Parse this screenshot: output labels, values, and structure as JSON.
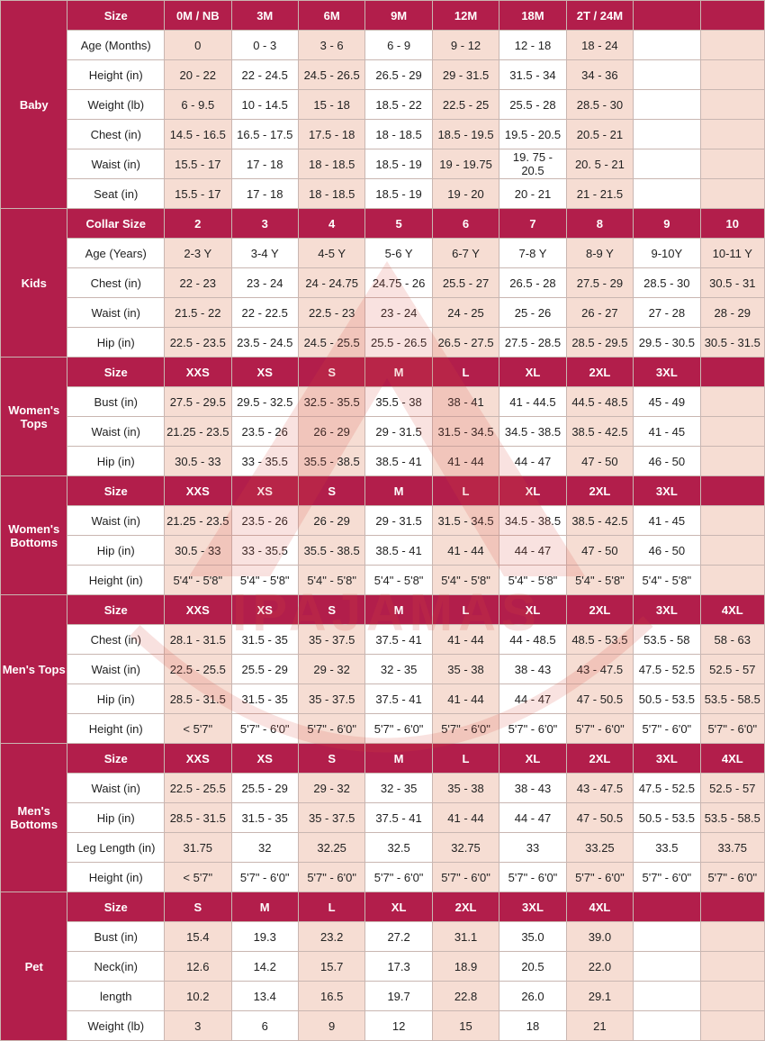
{
  "watermark": {
    "text": "IPAJAMAS",
    "color": "#d94a3d"
  },
  "colors": {
    "header_bg": "#b21e4b",
    "header_text": "#ffffff",
    "shade": "#f6ddd3",
    "white": "#ffffff",
    "border": "#c9b6b1"
  },
  "sections": [
    {
      "name": "Baby",
      "header": [
        "Size",
        "0M / NB",
        "3M",
        "6M",
        "9M",
        "12M",
        "18M",
        "2T / 24M",
        "",
        ""
      ],
      "rows": [
        [
          "Age (Months)",
          "0",
          "0 - 3",
          "3 - 6",
          "6 - 9",
          "9 - 12",
          "12 - 18",
          "18 - 24",
          "",
          ""
        ],
        [
          "Height (in)",
          "20 - 22",
          "22 - 24.5",
          "24.5 - 26.5",
          "26.5 - 29",
          "29 - 31.5",
          "31.5 - 34",
          "34 - 36",
          "",
          ""
        ],
        [
          "Weight (lb)",
          "6 - 9.5",
          "10 - 14.5",
          "15 - 18",
          "18.5 - 22",
          "22.5 - 25",
          "25.5 - 28",
          "28.5 - 30",
          "",
          ""
        ],
        [
          "Chest (in)",
          "14.5 - 16.5",
          "16.5 - 17.5",
          "17.5 - 18",
          "18 - 18.5",
          "18.5 - 19.5",
          "19.5 - 20.5",
          "20.5 - 21",
          "",
          ""
        ],
        [
          "Waist (in)",
          "15.5 - 17",
          "17 - 18",
          "18 - 18.5",
          "18.5 - 19",
          "19 - 19.75",
          "19. 75 - 20.5",
          "20. 5 - 21",
          "",
          ""
        ],
        [
          "Seat (in)",
          "15.5 - 17",
          "17 - 18",
          "18 - 18.5",
          "18.5 - 19",
          "19 - 20",
          "20 - 21",
          "21 - 21.5",
          "",
          ""
        ]
      ]
    },
    {
      "name": "Kids",
      "header": [
        "Collar Size",
        "2",
        "3",
        "4",
        "5",
        "6",
        "7",
        "8",
        "9",
        "10"
      ],
      "rows": [
        [
          "Age (Years)",
          "2-3 Y",
          "3-4 Y",
          "4-5 Y",
          "5-6 Y",
          "6-7 Y",
          "7-8 Y",
          "8-9 Y",
          "9-10Y",
          "10-11 Y"
        ],
        [
          "Chest (in)",
          "22 - 23",
          "23 - 24",
          "24 - 24.75",
          "24.75 - 26",
          "25.5 - 27",
          "26.5 - 28",
          "27.5 - 29",
          "28.5 - 30",
          "30.5 - 31"
        ],
        [
          "Waist (in)",
          "21.5 - 22",
          "22 - 22.5",
          "22.5 - 23",
          "23 - 24",
          "24 - 25",
          "25 - 26",
          "26 - 27",
          "27 - 28",
          "28 - 29"
        ],
        [
          "Hip (in)",
          "22.5 - 23.5",
          "23.5 - 24.5",
          "24.5 - 25.5",
          "25.5 - 26.5",
          "26.5 - 27.5",
          "27.5 - 28.5",
          "28.5 - 29.5",
          "29.5 - 30.5",
          "30.5 - 31.5"
        ]
      ]
    },
    {
      "name": "Women's Tops",
      "header": [
        "Size",
        "XXS",
        "XS",
        "S",
        "M",
        "L",
        "XL",
        "2XL",
        "3XL",
        ""
      ],
      "rows": [
        [
          "Bust (in)",
          "27.5 - 29.5",
          "29.5 - 32.5",
          "32.5 - 35.5",
          "35.5 - 38",
          "38 - 41",
          "41 - 44.5",
          "44.5 - 48.5",
          "45 - 49",
          ""
        ],
        [
          "Waist (in)",
          "21.25 - 23.5",
          "23.5 - 26",
          "26 - 29",
          "29 - 31.5",
          "31.5 - 34.5",
          "34.5 - 38.5",
          "38.5 - 42.5",
          "41 - 45",
          ""
        ],
        [
          "Hip (in)",
          "30.5 - 33",
          "33 - 35.5",
          "35.5 - 38.5",
          "38.5 - 41",
          "41 - 44",
          "44 - 47",
          "47 - 50",
          "46 - 50",
          ""
        ]
      ]
    },
    {
      "name": "Women's Bottoms",
      "header": [
        "Size",
        "XXS",
        "XS",
        "S",
        "M",
        "L",
        "XL",
        "2XL",
        "3XL",
        ""
      ],
      "rows": [
        [
          "Waist (in)",
          "21.25 - 23.5",
          "23.5 - 26",
          "26 - 29",
          "29 - 31.5",
          "31.5 - 34.5",
          "34.5 - 38.5",
          "38.5 - 42.5",
          "41 - 45",
          ""
        ],
        [
          "Hip (in)",
          "30.5 - 33",
          "33 - 35.5",
          "35.5 - 38.5",
          "38.5 - 41",
          "41 - 44",
          "44 - 47",
          "47 - 50",
          "46 - 50",
          ""
        ],
        [
          "Height (in)",
          "5'4\" - 5'8\"",
          "5'4\" - 5'8\"",
          "5'4\" - 5'8\"",
          "5'4\" - 5'8\"",
          "5'4\" - 5'8\"",
          "5'4\" - 5'8\"",
          "5'4\" - 5'8\"",
          "5'4\" - 5'8\"",
          ""
        ]
      ]
    },
    {
      "name": "Men's Tops",
      "header": [
        "Size",
        "XXS",
        "XS",
        "S",
        "M",
        "L",
        "XL",
        "2XL",
        "3XL",
        "4XL"
      ],
      "rows": [
        [
          "Chest (in)",
          "28.1 - 31.5",
          "31.5 - 35",
          "35 - 37.5",
          "37.5 - 41",
          "41 - 44",
          "44 - 48.5",
          "48.5 - 53.5",
          "53.5 - 58",
          "58 - 63"
        ],
        [
          "Waist (in)",
          "22.5 - 25.5",
          "25.5 - 29",
          "29 - 32",
          "32 - 35",
          "35 - 38",
          "38 - 43",
          "43 - 47.5",
          "47.5 - 52.5",
          "52.5 - 57"
        ],
        [
          "Hip (in)",
          "28.5 - 31.5",
          "31.5 - 35",
          "35 - 37.5",
          "37.5 - 41",
          "41 - 44",
          "44 - 47",
          "47 - 50.5",
          "50.5 - 53.5",
          "53.5 - 58.5"
        ],
        [
          "Height (in)",
          "< 5'7\"",
          "5'7\" - 6'0\"",
          "5'7\" - 6'0\"",
          "5'7\" - 6'0\"",
          "5'7\" - 6'0\"",
          "5'7\" - 6'0\"",
          "5'7\" - 6'0\"",
          "5'7\" - 6'0\"",
          "5'7\" - 6'0\""
        ]
      ]
    },
    {
      "name": "Men's Bottoms",
      "header": [
        "Size",
        "XXS",
        "XS",
        "S",
        "M",
        "L",
        "XL",
        "2XL",
        "3XL",
        "4XL"
      ],
      "rows": [
        [
          "Waist (in)",
          "22.5 - 25.5",
          "25.5 - 29",
          "29 - 32",
          "32 - 35",
          "35 - 38",
          "38 - 43",
          "43 - 47.5",
          "47.5 - 52.5",
          "52.5 - 57"
        ],
        [
          "Hip (in)",
          "28.5 - 31.5",
          "31.5 - 35",
          "35 - 37.5",
          "37.5 - 41",
          "41 - 44",
          "44 - 47",
          "47 - 50.5",
          "50.5 - 53.5",
          "53.5 - 58.5"
        ],
        [
          "Leg Length (in)",
          "31.75",
          "32",
          "32.25",
          "32.5",
          "32.75",
          "33",
          "33.25",
          "33.5",
          "33.75"
        ],
        [
          "Height (in)",
          "< 5'7\"",
          "5'7\" - 6'0\"",
          "5'7\" - 6'0\"",
          "5'7\" - 6'0\"",
          "5'7\" - 6'0\"",
          "5'7\" - 6'0\"",
          "5'7\" - 6'0\"",
          "5'7\" - 6'0\"",
          "5'7\" - 6'0\""
        ]
      ]
    },
    {
      "name": "Pet",
      "header": [
        "Size",
        "S",
        "M",
        "L",
        "XL",
        "2XL",
        "3XL",
        "4XL",
        "",
        ""
      ],
      "rows": [
        [
          "Bust (in)",
          "15.4",
          "19.3",
          "23.2",
          "27.2",
          "31.1",
          "35.0",
          "39.0",
          "",
          ""
        ],
        [
          "Neck(in)",
          "12.6",
          "14.2",
          "15.7",
          "17.3",
          "18.9",
          "20.5",
          "22.0",
          "",
          ""
        ],
        [
          "length",
          "10.2",
          "13.4",
          "16.5",
          "19.7",
          "22.8",
          "26.0",
          "29.1",
          "",
          ""
        ],
        [
          "Weight (lb)",
          "3",
          "6",
          "9",
          "12",
          "15",
          "18",
          "21",
          "",
          ""
        ]
      ]
    }
  ]
}
